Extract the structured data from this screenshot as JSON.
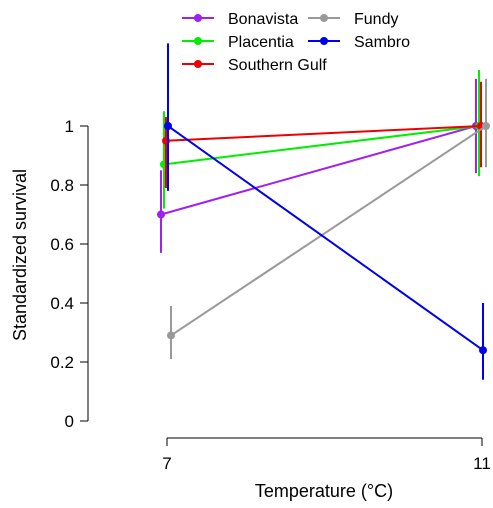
{
  "chart_data": {
    "type": "line",
    "title": "",
    "xlabel": "Temperature (°C)",
    "ylabel": "Standardized survival",
    "x": [
      7,
      11
    ],
    "x_tick_labels": [
      "7",
      "11"
    ],
    "ylim": [
      0,
      1
    ],
    "y_ticks": [
      0,
      0.2,
      0.4,
      0.6,
      0.8,
      1
    ],
    "y_tick_labels": [
      "0",
      "0.2",
      "0.4",
      "0.6",
      "0.8",
      "1"
    ],
    "grid": false,
    "legend_position": "top",
    "series": [
      {
        "name": "Bonavista",
        "color": "#a020f0",
        "values": [
          0.7,
          1.0
        ],
        "lower": [
          0.57,
          0.84
        ],
        "upper": [
          0.85,
          1.16
        ]
      },
      {
        "name": "Placentia",
        "color": "#00ee00",
        "values": [
          0.87,
          1.0
        ],
        "lower": [
          0.72,
          0.83
        ],
        "upper": [
          1.05,
          1.19
        ]
      },
      {
        "name": "Southern Gulf",
        "color": "#ee0000",
        "values": [
          0.95,
          1.0
        ],
        "lower": [
          0.79,
          0.86
        ],
        "upper": [
          1.03,
          1.15
        ]
      },
      {
        "name": "Fundy",
        "color": "#999999",
        "values": [
          0.29,
          1.0
        ],
        "lower": [
          0.21,
          0.86
        ],
        "upper": [
          0.39,
          1.16
        ]
      },
      {
        "name": "Sambro",
        "color": "#0000ee",
        "values": [
          1.0,
          0.24
        ],
        "lower": [
          0.78,
          0.14
        ],
        "upper": [
          1.28,
          0.4
        ]
      }
    ]
  }
}
